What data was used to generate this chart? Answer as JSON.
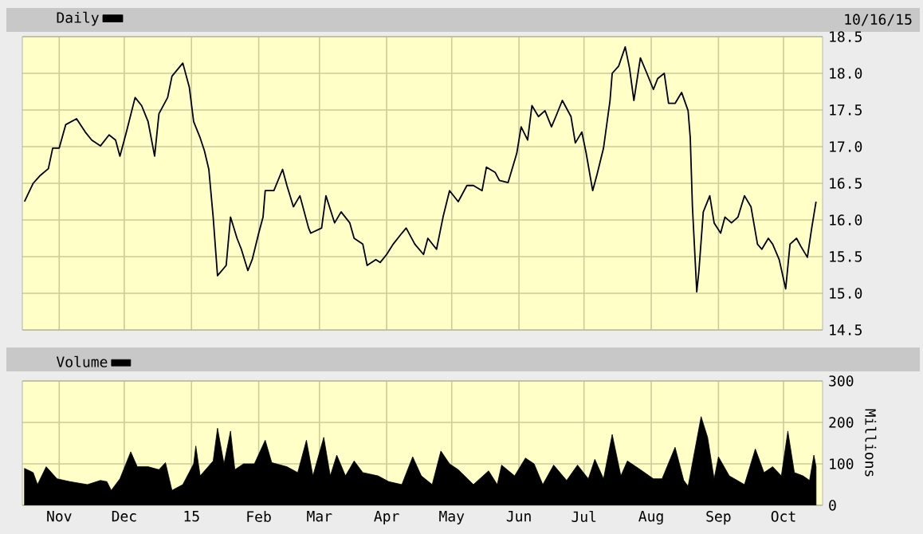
{
  "chart_data": [
    {
      "type": "line",
      "annotations": [
        "10/16/15"
      ],
      "legend": "top left",
      "grid": true,
      "tick_labels": "y",
      "xlim": [
        "2014-10-15",
        "2015-10-19"
      ],
      "xticks": [
        {
          "value": "2014-11-01",
          "label": null
        },
        {
          "value": "2014-12-01",
          "label": null
        },
        {
          "value": "2015-01-01",
          "label": null
        },
        {
          "value": "2015-02-01",
          "label": null
        },
        {
          "value": "2015-03-01",
          "label": null
        },
        {
          "value": "2015-04-01",
          "label": null
        },
        {
          "value": "2015-05-01",
          "label": null
        },
        {
          "value": "2015-06-01",
          "label": null
        },
        {
          "value": "2015-07-01",
          "label": null
        },
        {
          "value": "2015-08-01",
          "label": null
        },
        {
          "value": "2015-09-01",
          "label": null
        },
        {
          "value": "2015-10-01",
          "label": null
        }
      ],
      "ylim": [
        14.5,
        18.5
      ],
      "yticks": [
        14.5,
        {
          "value": 15,
          "label": "15.0"
        },
        15.5,
        {
          "value": 16,
          "label": "16.0"
        },
        16.5,
        {
          "value": 17,
          "label": "17.0"
        },
        17.5,
        {
          "value": 18,
          "label": "18.0"
        },
        18.5
      ],
      "series": [
        {
          "name": "Daily",
          "color": "#000000",
          "x": [
            "2014-10-16",
            "2014-10-20",
            "2014-10-23",
            "2014-10-27",
            "2014-10-29",
            "2014-11-01",
            "2014-11-04",
            "2014-11-09",
            "2014-11-13",
            "2014-11-16",
            "2014-11-20",
            "2014-11-24",
            "2014-11-27",
            "2014-11-29",
            "2014-12-02",
            "2014-12-06",
            "2014-12-09",
            "2014-12-12",
            "2014-12-15",
            "2014-12-17",
            "2014-12-21",
            "2014-12-23",
            "2014-12-28",
            "2014-12-31",
            "2015-01-02",
            "2015-01-05",
            "2015-01-07",
            "2015-01-09",
            "2015-01-11",
            "2015-01-13",
            "2015-01-17",
            "2015-01-19",
            "2015-01-22",
            "2015-01-24",
            "2015-01-27",
            "2015-01-29",
            "2015-02-01",
            "2015-02-03",
            "2015-02-04",
            "2015-02-08",
            "2015-02-12",
            "2015-02-14",
            "2015-02-17",
            "2015-02-20",
            "2015-02-24",
            "2015-02-25",
            "2015-03-02",
            "2015-03-04",
            "2015-03-08",
            "2015-03-11",
            "2015-03-15",
            "2015-03-17",
            "2015-03-21",
            "2015-03-23",
            "2015-03-27",
            "2015-03-29",
            "2015-04-01",
            "2015-04-04",
            "2015-04-08",
            "2015-04-10",
            "2015-04-14",
            "2015-04-18",
            "2015-04-20",
            "2015-04-24",
            "2015-04-27",
            "2015-04-30",
            "2015-05-04",
            "2015-05-08",
            "2015-05-11",
            "2015-05-15",
            "2015-05-17",
            "2015-05-21",
            "2015-05-23",
            "2015-05-27",
            "2015-05-31",
            "2015-06-02",
            "2015-06-05",
            "2015-06-07",
            "2015-06-10",
            "2015-06-13",
            "2015-06-16",
            "2015-06-18",
            "2015-06-21",
            "2015-06-25",
            "2015-06-27",
            "2015-06-30",
            "2015-07-02",
            "2015-07-05",
            "2015-07-07",
            "2015-07-10",
            "2015-07-13",
            "2015-07-14",
            "2015-07-17",
            "2015-07-20",
            "2015-07-22",
            "2015-07-24",
            "2015-07-27",
            "2015-07-30",
            "2015-08-02",
            "2015-08-04",
            "2015-08-07",
            "2015-08-09",
            "2015-08-12",
            "2015-08-15",
            "2015-08-18",
            "2015-08-19",
            "2015-08-20",
            "2015-08-22",
            "2015-08-23",
            "2015-08-25",
            "2015-08-28",
            "2015-08-30",
            "2015-09-02",
            "2015-09-04",
            "2015-09-07",
            "2015-09-10",
            "2015-09-13",
            "2015-09-16",
            "2015-09-19",
            "2015-09-21",
            "2015-09-24",
            "2015-09-26",
            "2015-09-29",
            "2015-10-02",
            "2015-10-04",
            "2015-10-07",
            "2015-10-09",
            "2015-10-12",
            "2015-10-14",
            "2015-10-16"
          ],
          "values": [
            16.25,
            16.5,
            16.6,
            16.7,
            16.98,
            16.98,
            17.3,
            17.38,
            17.2,
            17.09,
            17.01,
            17.16,
            17.09,
            16.87,
            17.2,
            17.67,
            17.56,
            17.34,
            16.87,
            17.45,
            17.67,
            17.96,
            18.14,
            17.81,
            17.34,
            17.12,
            16.94,
            16.69,
            16.04,
            15.24,
            15.38,
            16.04,
            15.75,
            15.6,
            15.31,
            15.46,
            15.82,
            16.04,
            16.4,
            16.4,
            16.69,
            16.47,
            16.18,
            16.33,
            15.89,
            15.82,
            15.89,
            16.33,
            15.96,
            16.11,
            15.96,
            15.75,
            15.67,
            15.38,
            15.46,
            15.42,
            15.53,
            15.67,
            15.82,
            15.89,
            15.67,
            15.53,
            15.75,
            15.6,
            16.04,
            16.4,
            16.25,
            16.47,
            16.47,
            16.4,
            16.72,
            16.65,
            16.54,
            16.51,
            16.91,
            17.27,
            17.09,
            17.56,
            17.41,
            17.49,
            17.27,
            17.41,
            17.63,
            17.41,
            17.05,
            17.2,
            16.91,
            16.4,
            16.62,
            16.98,
            17.63,
            18.0,
            18.1,
            18.36,
            18.07,
            17.63,
            18.21,
            18.0,
            17.78,
            17.93,
            18.0,
            17.59,
            17.59,
            17.74,
            17.49,
            17.12,
            16.18,
            15.02,
            15.31,
            16.11,
            16.33,
            15.96,
            15.82,
            16.04,
            15.96,
            16.04,
            16.33,
            16.18,
            15.67,
            15.6,
            15.75,
            15.67,
            15.46,
            15.06,
            15.67,
            15.75,
            15.64,
            15.49,
            15.89,
            16.25
          ]
        }
      ]
    },
    {
      "type": "area",
      "ylabel": "Millions",
      "legend": "top left",
      "grid": true,
      "xlim": [
        "2014-10-15",
        "2015-10-19"
      ],
      "xticks": [
        {
          "value": "2014-11-01",
          "label": "Nov"
        },
        {
          "value": "2014-12-01",
          "label": "Dec"
        },
        {
          "value": "2015-01-01",
          "label": "15"
        },
        {
          "value": "2015-02-01",
          "label": "Feb"
        },
        {
          "value": "2015-03-01",
          "label": "Mar"
        },
        {
          "value": "2015-04-01",
          "label": "Apr"
        },
        {
          "value": "2015-05-01",
          "label": "May"
        },
        {
          "value": "2015-06-01",
          "label": "Jun"
        },
        {
          "value": "2015-07-01",
          "label": "Jul"
        },
        {
          "value": "2015-08-01",
          "label": "Aug"
        },
        {
          "value": "2015-09-01",
          "label": "Sep"
        },
        {
          "value": "2015-10-01",
          "label": "Oct"
        }
      ],
      "ylim": [
        0,
        300
      ],
      "yticks": [
        0,
        100,
        200,
        300
      ],
      "series": [
        {
          "name": "Volume",
          "color": "#000000",
          "x": [
            "2014-10-16",
            "2014-10-20",
            "2014-10-22",
            "2014-10-26",
            "2014-10-31",
            "2014-11-06",
            "2014-11-14",
            "2014-11-20",
            "2014-11-23",
            "2014-11-25",
            "2014-11-29",
            "2014-12-04",
            "2014-12-07",
            "2014-12-12",
            "2014-12-17",
            "2014-12-20",
            "2014-12-23",
            "2014-12-28",
            "2015-01-02",
            "2015-01-03",
            "2015-01-05",
            "2015-01-11",
            "2015-01-13",
            "2015-01-16",
            "2015-01-19",
            "2015-01-21",
            "2015-01-25",
            "2015-01-30",
            "2015-02-04",
            "2015-02-07",
            "2015-02-14",
            "2015-02-19",
            "2015-02-23",
            "2015-02-26",
            "2015-03-03",
            "2015-03-06",
            "2015-03-09",
            "2015-03-13",
            "2015-03-17",
            "2015-03-21",
            "2015-03-28",
            "2015-04-02",
            "2015-04-08",
            "2015-04-13",
            "2015-04-17",
            "2015-04-22",
            "2015-04-26",
            "2015-04-30",
            "2015-05-04",
            "2015-05-11",
            "2015-05-18",
            "2015-05-22",
            "2015-05-24",
            "2015-05-30",
            "2015-06-04",
            "2015-06-08",
            "2015-06-12",
            "2015-06-17",
            "2015-06-23",
            "2015-06-28",
            "2015-07-03",
            "2015-07-06",
            "2015-07-10",
            "2015-07-14",
            "2015-07-18",
            "2015-07-21",
            "2015-07-27",
            "2015-08-02",
            "2015-08-06",
            "2015-08-12",
            "2015-08-16",
            "2015-08-18",
            "2015-08-24",
            "2015-08-27",
            "2015-08-30",
            "2015-09-01",
            "2015-09-06",
            "2015-09-13",
            "2015-09-18",
            "2015-09-22",
            "2015-09-26",
            "2015-09-30",
            "2015-10-03",
            "2015-10-06",
            "2015-10-10",
            "2015-10-13",
            "2015-10-15",
            "2015-10-16"
          ],
          "values": [
            89,
            79,
            50,
            93,
            64,
            57,
            50,
            60,
            57,
            36,
            64,
            129,
            93,
            93,
            86,
            103,
            36,
            50,
            100,
            143,
            71,
            107,
            186,
            100,
            179,
            86,
            100,
            100,
            157,
            103,
            93,
            79,
            157,
            71,
            164,
            71,
            121,
            71,
            107,
            79,
            71,
            57,
            50,
            117,
            71,
            50,
            131,
            100,
            86,
            50,
            83,
            50,
            97,
            71,
            114,
            100,
            50,
            97,
            60,
            97,
            64,
            111,
            64,
            171,
            71,
            107,
            86,
            64,
            64,
            140,
            60,
            46,
            214,
            164,
            64,
            117,
            71,
            50,
            136,
            79,
            93,
            71,
            179,
            79,
            71,
            60,
            121,
            93
          ]
        }
      ]
    }
  ]
}
